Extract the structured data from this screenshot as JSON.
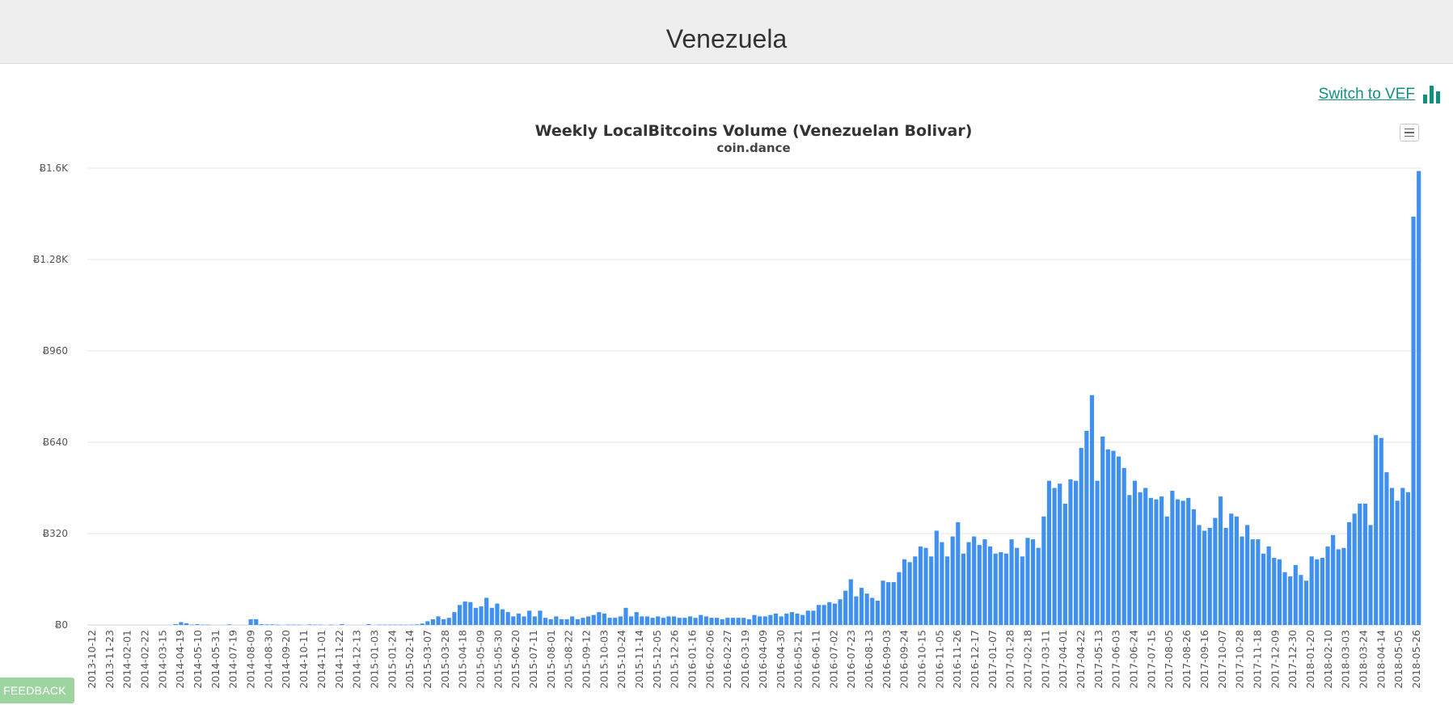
{
  "header": {
    "title": "Venezuela"
  },
  "switch_link": {
    "label": "Switch to VEF",
    "icon": "bar-chart-icon",
    "color": "#10917f"
  },
  "chart_menu": {
    "icon": "hamburger-menu-icon"
  },
  "feedback": {
    "label": "FEEDBACK"
  },
  "chart_data": {
    "type": "bar",
    "title": "Weekly LocalBitcoins Volume (Venezuelan Bolivar)",
    "subtitle": "coin.dance",
    "xlabel": "",
    "ylabel": "",
    "bar_color": "#4090f0",
    "grid": true,
    "ylim": [
      0,
      1600
    ],
    "y_ticks": [
      0,
      320,
      640,
      960,
      1280,
      1600
    ],
    "y_tick_labels": [
      "Ƀ0",
      "Ƀ320",
      "Ƀ640",
      "Ƀ960",
      "Ƀ1.28K",
      "Ƀ1.6K"
    ],
    "x_tick_labels": [
      "2013-10-12",
      "2013-11-23",
      "2014-02-01",
      "2014-02-22",
      "2014-03-15",
      "2014-04-19",
      "2014-05-10",
      "2014-05-31",
      "2014-07-19",
      "2014-08-09",
      "2014-08-30",
      "2014-09-20",
      "2014-10-11",
      "2014-11-01",
      "2014-11-22",
      "2014-12-13",
      "2015-01-03",
      "2015-01-24",
      "2015-02-14",
      "2015-03-07",
      "2015-03-28",
      "2015-04-18",
      "2015-05-09",
      "2015-05-30",
      "2015-06-20",
      "2015-07-11",
      "2015-08-01",
      "2015-08-22",
      "2015-09-12",
      "2015-10-03",
      "2015-10-24",
      "2015-11-14",
      "2015-12-05",
      "2015-12-26",
      "2016-01-16",
      "2016-02-06",
      "2016-02-27",
      "2016-03-19",
      "2016-04-09",
      "2016-04-30",
      "2016-05-21",
      "2016-06-11",
      "2016-07-02",
      "2016-07-23",
      "2016-08-13",
      "2016-09-03",
      "2016-09-24",
      "2016-10-15",
      "2016-11-05",
      "2016-11-26",
      "2016-12-17",
      "2017-01-07",
      "2017-01-28",
      "2017-02-18",
      "2017-03-11",
      "2017-04-01",
      "2017-04-22",
      "2017-05-13",
      "2017-06-03",
      "2017-06-24",
      "2017-07-15",
      "2017-08-05",
      "2017-08-26",
      "2017-09-16",
      "2017-10-07",
      "2017-10-28",
      "2017-11-18",
      "2017-12-09",
      "2017-12-30",
      "2018-01-20",
      "2018-02-10",
      "2018-03-03",
      "2018-03-24",
      "2018-04-14",
      "2018-05-05",
      "2018-05-26"
    ],
    "values": [
      0,
      0,
      0,
      0,
      0,
      0,
      0,
      0,
      0,
      0,
      0,
      0,
      0,
      0,
      0,
      0,
      3,
      10,
      6,
      1,
      3,
      1,
      1,
      0,
      0,
      0,
      2,
      0,
      0,
      0,
      20,
      20,
      3,
      2,
      2,
      1,
      0,
      1,
      1,
      1,
      0,
      2,
      1,
      1,
      0,
      1,
      0,
      3,
      0,
      0,
      0,
      0,
      3,
      0,
      1,
      1,
      1,
      1,
      1,
      1,
      1,
      2,
      5,
      13,
      20,
      30,
      20,
      25,
      45,
      70,
      82,
      80,
      60,
      65,
      95,
      60,
      75,
      55,
      45,
      30,
      40,
      30,
      50,
      30,
      50,
      25,
      20,
      30,
      20,
      20,
      30,
      20,
      25,
      30,
      35,
      45,
      40,
      25,
      25,
      30,
      60,
      30,
      45,
      30,
      30,
      25,
      30,
      25,
      30,
      30,
      25,
      25,
      30,
      25,
      35,
      30,
      25,
      25,
      20,
      25,
      25,
      25,
      25,
      20,
      35,
      30,
      30,
      35,
      40,
      30,
      40,
      45,
      40,
      35,
      50,
      50,
      70,
      70,
      80,
      75,
      90,
      120,
      160,
      100,
      130,
      110,
      95,
      85,
      155,
      150,
      150,
      185,
      230,
      220,
      240,
      275,
      270,
      240,
      330,
      290,
      240,
      310,
      360,
      250,
      290,
      310,
      280,
      300,
      275,
      250,
      255,
      250,
      300,
      270,
      240,
      305,
      300,
      270,
      380,
      505,
      480,
      495,
      425,
      510,
      505,
      620,
      680,
      805,
      505,
      660,
      615,
      610,
      590,
      550,
      455,
      505,
      465,
      480,
      445,
      440,
      450,
      380,
      470,
      440,
      435,
      445,
      405,
      350,
      330,
      340,
      375,
      450,
      340,
      390,
      380,
      310,
      350,
      300,
      300,
      250,
      275,
      235,
      230,
      185,
      170,
      210,
      175,
      155,
      240,
      230,
      235,
      275,
      315,
      265,
      270,
      360,
      390,
      425,
      425,
      350,
      665,
      655,
      535,
      480,
      435,
      480,
      465,
      1430,
      1590
    ]
  }
}
